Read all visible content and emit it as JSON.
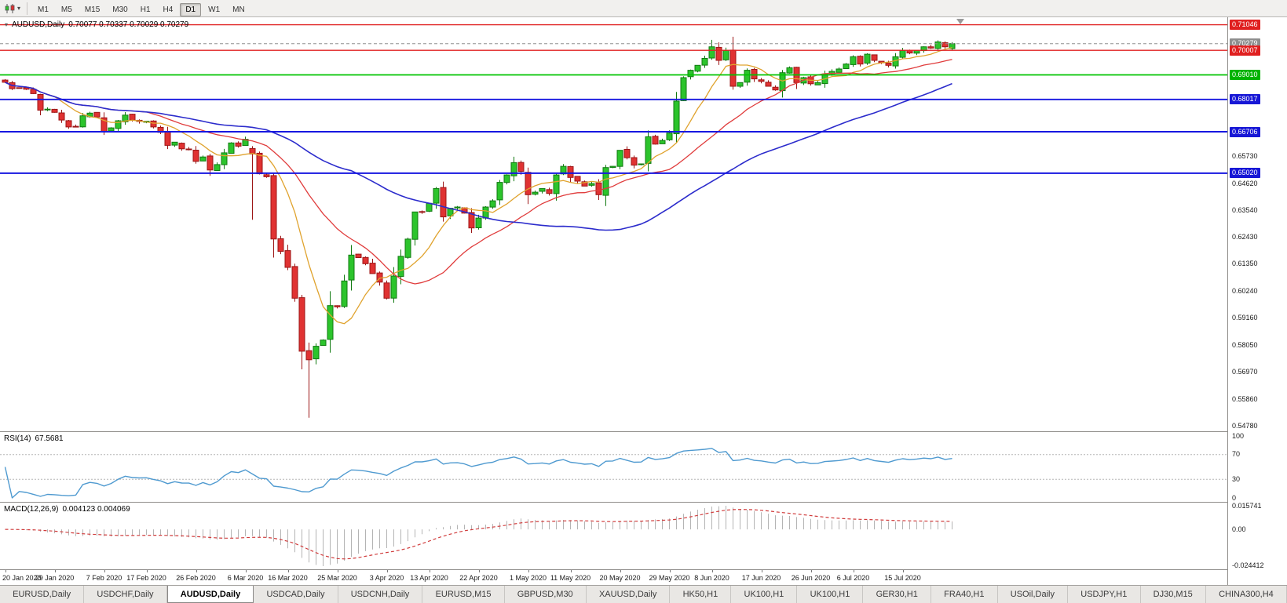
{
  "toolbar": {
    "chart_menu_icon": "candlestick-chart",
    "timeframes": [
      "M1",
      "M5",
      "M15",
      "M30",
      "H1",
      "H4",
      "D1",
      "W1",
      "MN"
    ],
    "active_timeframe": "D1"
  },
  "header": {
    "symbol": "AUDUSD,Daily",
    "ohlc": "0.70077 0.70337 0.70029 0.70279"
  },
  "rsi_panel": {
    "title": "RSI(14)",
    "value": "67.5681",
    "line_color": "#4f9ad0",
    "level_lines": [
      70,
      30
    ],
    "axis_labels": [
      {
        "text": "100",
        "value": 100
      },
      {
        "text": "70",
        "value": 70
      },
      {
        "text": "30",
        "value": 30
      },
      {
        "text": "0",
        "value": 0
      }
    ]
  },
  "macd_panel": {
    "title": "MACD(12,26,9)",
    "values": "0.004123 0.004069",
    "histogram_color": "#b4b4b4",
    "signal_color": "#d03c3c",
    "axis_labels": [
      {
        "text": "0.015741",
        "value": 0.015741
      },
      {
        "text": "0.00",
        "value": 0
      },
      {
        "text": "-0.024412",
        "value": -0.024412
      }
    ]
  },
  "price_axis": {
    "plain_ticks": [
      "0.65730",
      "0.64620",
      "0.63540",
      "0.62430",
      "0.61350",
      "0.60240",
      "0.59160",
      "0.58050",
      "0.56970",
      "0.55860",
      "0.54780"
    ],
    "tagged_labels": [
      {
        "text": "0.71046",
        "value": 0.71046,
        "bg": "#e02020"
      },
      {
        "text": "0.70279",
        "value": 0.70279,
        "bg": "#8e8e8e",
        "role": "current-price"
      },
      {
        "text": "0.70007",
        "value": 0.70007,
        "bg": "#e02020"
      },
      {
        "text": "0.69010",
        "value": 0.6901,
        "bg": "#00b300"
      },
      {
        "text": "0.68017",
        "value": 0.68017,
        "bg": "#1717d6"
      },
      {
        "text": "0.66706",
        "value": 0.66706,
        "bg": "#1717d6"
      },
      {
        "text": "0.65020",
        "value": 0.6502,
        "bg": "#1717d6"
      }
    ]
  },
  "x_axis": {
    "labels": [
      {
        "text": "20 Jan 2020",
        "index": 0
      },
      {
        "text": "29 Jan 2020",
        "index": 7
      },
      {
        "text": "7 Feb 2020",
        "index": 14
      },
      {
        "text": "17 Feb 2020",
        "index": 20
      },
      {
        "text": "26 Feb 2020",
        "index": 27
      },
      {
        "text": "6 Mar 2020",
        "index": 34
      },
      {
        "text": "16 Mar 2020",
        "index": 40
      },
      {
        "text": "25 Mar 2020",
        "index": 47
      },
      {
        "text": "3 Apr 2020",
        "index": 54
      },
      {
        "text": "13 Apr 2020",
        "index": 60
      },
      {
        "text": "22 Apr 2020",
        "index": 67
      },
      {
        "text": "1 May 2020",
        "index": 74
      },
      {
        "text": "11 May 2020",
        "index": 80
      },
      {
        "text": "20 May 2020",
        "index": 87
      },
      {
        "text": "29 May 2020",
        "index": 94
      },
      {
        "text": "8 Jun 2020",
        "index": 100
      },
      {
        "text": "17 Jun 2020",
        "index": 107
      },
      {
        "text": "26 Jun 2020",
        "index": 114
      },
      {
        "text": "6 Jul 2020",
        "index": 120
      },
      {
        "text": "15 Jul 2020",
        "index": 127
      }
    ]
  },
  "tabs": {
    "active_index": 2,
    "items": [
      "EURUSD,Daily",
      "USDCHF,Daily",
      "AUDUSD,Daily",
      "USDCAD,Daily",
      "USDCNH,Daily",
      "EURUSD,M15",
      "GBPUSD,M30",
      "XAUUSD,Daily",
      "HK50,H1",
      "UK100,H1",
      "UK100,H1",
      "GER30,H1",
      "FRA40,H1",
      "USOil,Daily",
      "USDJPY,H1",
      "DJ30,M15",
      "CHINA300,H4"
    ]
  },
  "chart_data": {
    "type": "candlestick",
    "symbol": "AUDUSD",
    "timeframe": "Daily",
    "visible_range": {
      "first_date": "20 Jan 2020",
      "last_date": "22 Jul 2020"
    },
    "price_range": {
      "top": 0.7135,
      "bottom": 0.5455
    },
    "closes": [
      0.6871,
      0.6845,
      0.6848,
      0.6843,
      0.6825,
      0.6758,
      0.6762,
      0.6749,
      0.6718,
      0.669,
      0.6692,
      0.6735,
      0.6746,
      0.673,
      0.667,
      0.6686,
      0.6715,
      0.6738,
      0.6718,
      0.6712,
      0.6713,
      0.669,
      0.6668,
      0.6615,
      0.6628,
      0.6601,
      0.66,
      0.655,
      0.6568,
      0.6515,
      0.6537,
      0.6585,
      0.6625,
      0.6612,
      0.664,
      0.658,
      0.65,
      0.6488,
      0.6235,
      0.6185,
      0.612,
      0.5995,
      0.578,
      0.5745,
      0.58,
      0.5825,
      0.5965,
      0.596,
      0.6065,
      0.617,
      0.616,
      0.6135,
      0.6095,
      0.606,
      0.5995,
      0.6085,
      0.6165,
      0.6235,
      0.6345,
      0.6345,
      0.638,
      0.644,
      0.6325,
      0.636,
      0.6365,
      0.634,
      0.628,
      0.632,
      0.6365,
      0.639,
      0.6465,
      0.6495,
      0.6545,
      0.651,
      0.6415,
      0.6425,
      0.644,
      0.642,
      0.6495,
      0.653,
      0.6485,
      0.647,
      0.645,
      0.646,
      0.6415,
      0.6525,
      0.653,
      0.6595,
      0.6565,
      0.6535,
      0.654,
      0.665,
      0.662,
      0.6635,
      0.6665,
      0.6795,
      0.689,
      0.692,
      0.694,
      0.6968,
      0.7015,
      0.696,
      0.7,
      0.6855,
      0.687,
      0.692,
      0.6885,
      0.6875,
      0.6855,
      0.684,
      0.691,
      0.693,
      0.687,
      0.689,
      0.6865,
      0.687,
      0.6905,
      0.6915,
      0.6925,
      0.6945,
      0.6975,
      0.6945,
      0.6985,
      0.696,
      0.695,
      0.694,
      0.6975,
      0.7,
      0.699,
      0.7,
      0.7015,
      0.701,
      0.7035,
      0.7015,
      0.70279
    ],
    "candle_overrides": {
      "35": {
        "open": 0.6602,
        "high": 0.6612,
        "low": 0.6313
      },
      "43": {
        "open": 0.5782,
        "high": 0.5815,
        "low": 0.551
      },
      "100": {
        "high": 0.7043
      },
      "132": {
        "high": 0.7041
      },
      "134": {
        "open": 0.70077,
        "high": 0.70337,
        "low": 0.70029,
        "close": 0.70279
      }
    },
    "up_color": "#2cc42c",
    "up_stroke": "#117a11",
    "down_color": "#e03232",
    "down_stroke": "#9c1616",
    "moving_averages": [
      {
        "name": "fast",
        "type": "SMA",
        "period": 8,
        "color": "#e0a32e",
        "width": 1.3
      },
      {
        "name": "medium",
        "type": "SMA",
        "period": 21,
        "color": "#e03c3c",
        "width": 1.3
      },
      {
        "name": "slow",
        "type": "SMA",
        "period": 50,
        "color": "#2c2ccc",
        "width": 1.6
      }
    ],
    "horizontal_lines": [
      {
        "value": 0.71046,
        "color": "#e02020",
        "width": 1.4
      },
      {
        "value": 0.70007,
        "color": "#e02020",
        "width": 1.4
      },
      {
        "value": 0.6901,
        "color": "#00c400",
        "width": 1.8
      },
      {
        "value": 0.68017,
        "color": "#1717e0",
        "width": 1.8
      },
      {
        "value": 0.66706,
        "color": "#1717e0",
        "width": 2.0
      },
      {
        "value": 0.6502,
        "color": "#1717e0",
        "width": 2.0
      }
    ],
    "current_price": {
      "value": 0.70279,
      "line_color": "#909090"
    },
    "rsi": {
      "period": 14,
      "current": 67.5681
    },
    "macd": {
      "fast": 12,
      "slow": 26,
      "signal_period": 9,
      "current_macd": 0.004123,
      "current_signal": 0.004069
    }
  }
}
